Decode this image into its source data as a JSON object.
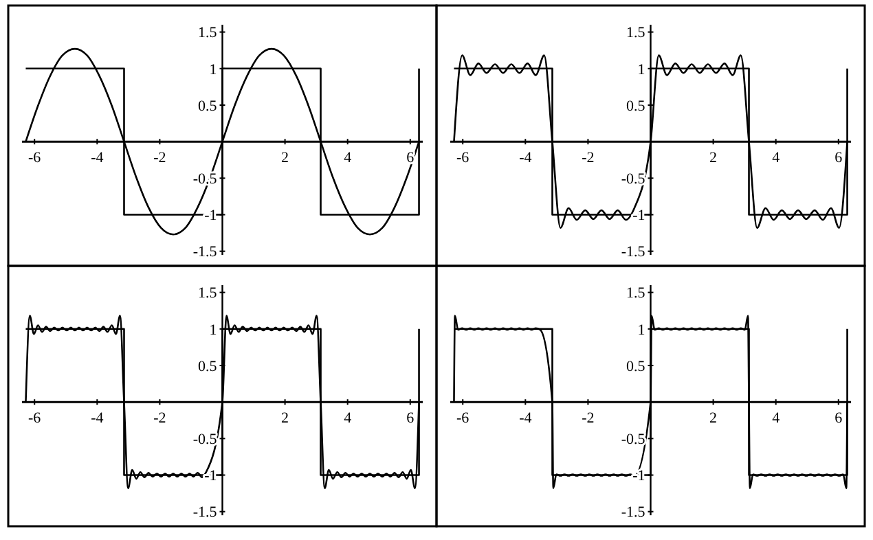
{
  "chart_data": [
    {
      "type": "line",
      "xlim": [
        -6.4,
        6.4
      ],
      "ylim": [
        -1.55,
        1.6
      ],
      "xticks": [
        -6,
        -4,
        -2,
        2,
        4,
        6
      ],
      "yticks": [
        -1.5,
        -1,
        -0.5,
        0.5,
        1,
        1.5
      ],
      "series": [
        {
          "color": "#000000",
          "x": [
            -6.28,
            -3.14,
            -3.14,
            0,
            0,
            3.14,
            3.14,
            6.28,
            6.28
          ],
          "values": [
            1,
            1,
            -1,
            -1,
            1,
            1,
            -1,
            -1,
            1
          ]
        },
        {
          "color": "#000000",
          "x": [
            -6.28,
            -5.89,
            -5.5,
            -5.11,
            -4.71,
            -4.32,
            -3.93,
            -3.53,
            -3.14,
            -2.75,
            -2.36,
            -1.96,
            -1.57,
            -1.18,
            -0.79,
            -0.39,
            0,
            0.39,
            0.79,
            1.18,
            1.57,
            1.96,
            2.36,
            2.75,
            3.14,
            3.53,
            3.93,
            4.32,
            4.71,
            5.11,
            5.5,
            5.89,
            6.28
          ],
          "values": [
            0,
            0.49,
            0.9,
            1.18,
            1.27,
            1.18,
            0.9,
            0.49,
            0,
            -0.49,
            -0.9,
            -1.18,
            -1.27,
            -1.18,
            -0.9,
            -0.49,
            0,
            0.49,
            0.9,
            1.18,
            1.27,
            1.18,
            0.9,
            0.49,
            0,
            -0.49,
            -0.9,
            -1.18,
            -1.27,
            -1.18,
            -0.9,
            -0.49,
            0
          ]
        }
      ]
    },
    {
      "type": "line",
      "xlim": [
        -6.4,
        6.4
      ],
      "ylim": [
        -1.55,
        1.6
      ],
      "xticks": [
        -6,
        -4,
        -2,
        2,
        4,
        6
      ],
      "yticks": [
        -1.5,
        -1,
        -0.5,
        0.5,
        1,
        1.5
      ],
      "series": [
        {
          "color": "#000000",
          "x": [
            -6.28,
            -3.14,
            -3.14,
            0,
            0,
            3.14,
            3.14,
            6.28,
            6.28
          ],
          "values": [
            1,
            1,
            -1,
            -1,
            1,
            1,
            -1,
            -1,
            1
          ]
        },
        {
          "color": "#000000",
          "x": [
            -6.28,
            -6.02,
            -5.76,
            -5.5,
            -5.24,
            -4.97,
            -4.71,
            -4.45,
            -4.19,
            -3.93,
            -3.67,
            -3.4,
            -3.14,
            -2.88,
            -2.62,
            -2.36,
            -2.09,
            -1.83,
            -1.57,
            -1.31,
            -1.05,
            -0.79,
            -0.52,
            0,
            0.26,
            0.52,
            0.79,
            1.05,
            1.31,
            1.57,
            1.83,
            2.09,
            2.36,
            2.62,
            2.88,
            3.14,
            3.4,
            3.67,
            3.93,
            4.19,
            4.45,
            4.71,
            4.97,
            5.24,
            5.5,
            5.76,
            6.02,
            6.28
          ],
          "values": [
            0,
            1.18,
            0.91,
            1.07,
            0.94,
            1.06,
            0.94,
            1.06,
            0.94,
            1.07,
            0.91,
            1.18,
            0,
            -1.18,
            -0.91,
            -1.07,
            -0.94,
            -1.06,
            -0.94,
            -1.06,
            -0.94,
            -1.07,
            -0.91,
            0,
            1.18,
            0.91,
            1.07,
            0.94,
            1.06,
            0.94,
            1.06,
            0.94,
            1.07,
            0.91,
            1.18,
            0,
            -1.18,
            -0.91,
            -1.07,
            -0.94,
            -1.06,
            -0.94,
            -1.06,
            -0.94,
            -1.07,
            -0.91,
            -1.18,
            0
          ]
        }
      ]
    },
    {
      "type": "line",
      "xlim": [
        -6.4,
        6.4
      ],
      "ylim": [
        -1.55,
        1.6
      ],
      "xticks": [
        -6,
        -4,
        -2,
        2,
        4,
        6
      ],
      "yticks": [
        -1.5,
        -1,
        -0.5,
        0.5,
        1,
        1.5
      ],
      "series": [
        {
          "color": "#000000",
          "x": [
            -6.28,
            -3.14,
            -3.14,
            0,
            0,
            3.14,
            3.14,
            6.28,
            6.28
          ],
          "values": [
            1,
            1,
            -1,
            -1,
            1,
            1,
            -1,
            -1,
            1
          ]
        },
        {
          "color": "#000000",
          "x": [
            -6.28,
            -6.15,
            -6.02,
            -5.89,
            -5.76,
            -5.63,
            -5.5,
            -5.37,
            -5.24,
            -5.11,
            -4.97,
            -4.84,
            -4.71,
            -4.58,
            -4.45,
            -4.32,
            -4.19,
            -4.06,
            -3.93,
            -3.8,
            -3.67,
            -3.53,
            -3.4,
            -3.27,
            -3.14,
            -3.01,
            -2.88,
            -2.75,
            -2.62,
            -2.49,
            -2.36,
            -2.23,
            -2.09,
            -1.96,
            -1.83,
            -1.7,
            -1.57,
            -1.44,
            -1.31,
            -1.18,
            -1.05,
            -0.92,
            -0.79,
            -0.65,
            -0.52,
            0,
            0.13,
            0.26,
            0.39,
            0.52,
            0.65,
            0.79,
            0.92,
            1.05,
            1.18,
            1.31,
            1.44,
            1.57,
            1.7,
            1.83,
            1.96,
            2.09,
            2.23,
            2.36,
            2.49,
            2.62,
            2.75,
            2.88,
            3.01,
            3.14,
            3.27,
            3.4,
            3.53,
            3.67,
            3.8,
            3.93,
            4.06,
            4.19,
            4.32,
            4.45,
            4.58,
            4.71,
            4.84,
            4.97,
            5.11,
            5.24,
            5.37,
            5.5,
            5.63,
            5.76,
            5.89,
            6.02,
            6.15,
            6.28
          ],
          "values": [
            0,
            1.18,
            0.93,
            1.05,
            0.96,
            1.03,
            0.97,
            1.02,
            0.98,
            1.02,
            0.98,
            1.02,
            0.98,
            1.02,
            0.98,
            1.02,
            0.98,
            1.02,
            0.97,
            1.03,
            0.96,
            1.05,
            0.93,
            1.18,
            0,
            -1.18,
            -0.93,
            -1.05,
            -0.96,
            -1.03,
            -0.97,
            -1.02,
            -0.98,
            -1.02,
            -0.98,
            -1.02,
            -0.98,
            -1.02,
            -0.98,
            -1.02,
            -0.98,
            -1.02,
            -0.97,
            -1.03,
            -0.96,
            0,
            1.18,
            0.93,
            1.05,
            0.96,
            1.03,
            0.97,
            1.02,
            0.98,
            1.02,
            0.98,
            1.02,
            0.98,
            1.02,
            0.98,
            1.02,
            0.98,
            1.02,
            0.97,
            1.03,
            0.96,
            1.05,
            0.93,
            1.18,
            0,
            -1.18,
            -0.93,
            -1.05,
            -0.96,
            -1.03,
            -0.97,
            -1.02,
            -0.98,
            -1.02,
            -0.98,
            -1.02,
            -0.98,
            -1.02,
            -0.98,
            -1.02,
            -0.98,
            -1.02,
            -0.97,
            -1.03,
            -0.96,
            -1.05,
            -0.93,
            -1.18,
            0
          ]
        }
      ]
    },
    {
      "type": "line",
      "xlim": [
        -6.4,
        6.4
      ],
      "ylim": [
        -1.55,
        1.6
      ],
      "xticks": [
        -6,
        -4,
        -2,
        2,
        4,
        6
      ],
      "yticks": [
        -1.5,
        -1,
        -0.5,
        0.5,
        1,
        1.5
      ],
      "series": [
        {
          "color": "#000000",
          "x": [
            -6.28,
            -3.14,
            -3.14,
            0,
            0,
            3.14,
            3.14,
            6.28,
            6.28
          ],
          "values": [
            1,
            1,
            -1,
            -1,
            1,
            1,
            -1,
            -1,
            1
          ]
        },
        {
          "color": "#000000",
          "x": [
            -6.28,
            -6.25,
            -6.15,
            -6.02,
            -5.89,
            -5.76,
            -5.63,
            -5.5,
            -5.37,
            -5.24,
            -5.11,
            -4.97,
            -4.84,
            -4.71,
            -4.58,
            -4.45,
            -4.32,
            -4.19,
            -4.06,
            -3.93,
            -3.8,
            -3.67,
            -3.53,
            -3.14,
            -3.11,
            -3.01,
            -2.88,
            -2.75,
            -2.62,
            -2.49,
            -2.36,
            -2.23,
            -2.09,
            -1.96,
            -1.83,
            -1.7,
            -1.57,
            -1.44,
            -1.31,
            -1.18,
            -1.05,
            -0.92,
            -0.79,
            -0.65,
            -0.52,
            0,
            0.03,
            0.13,
            0.26,
            0.39,
            0.52,
            0.65,
            0.79,
            0.92,
            1.05,
            1.18,
            1.31,
            1.44,
            1.57,
            1.7,
            1.83,
            1.96,
            2.09,
            2.23,
            2.36,
            2.49,
            2.62,
            2.75,
            2.88,
            3.01,
            3.11,
            3.14,
            3.17,
            3.27,
            3.4,
            3.53,
            3.67,
            3.8,
            3.93,
            4.06,
            4.19,
            4.32,
            4.45,
            4.58,
            4.71,
            4.84,
            4.97,
            5.11,
            5.24,
            5.37,
            5.5,
            5.63,
            5.76,
            5.89,
            6.02,
            6.15,
            6.25,
            6.28
          ],
          "values": [
            0,
            1.18,
            0.99,
            1.01,
            0.99,
            1.01,
            0.99,
            1.01,
            0.99,
            1.01,
            0.99,
            1.01,
            0.99,
            1.01,
            0.99,
            1.01,
            0.99,
            1.01,
            0.99,
            1.01,
            0.99,
            1.01,
            0.99,
            0,
            -1.18,
            -0.99,
            -1.01,
            -0.99,
            -1.01,
            -0.99,
            -1.01,
            -0.99,
            -1.01,
            -0.99,
            -1.01,
            -0.99,
            -1.01,
            -0.99,
            -1.01,
            -0.99,
            -1.01,
            -0.99,
            -1.01,
            -0.99,
            -1.01,
            0,
            1.18,
            0.99,
            1.01,
            0.99,
            1.01,
            0.99,
            1.01,
            0.99,
            1.01,
            0.99,
            1.01,
            0.99,
            1.01,
            0.99,
            1.01,
            0.99,
            1.01,
            0.99,
            1.01,
            0.99,
            1.01,
            0.99,
            1.01,
            0.99,
            1.18,
            0,
            -1.18,
            -0.99,
            -1.01,
            -0.99,
            -1.01,
            -0.99,
            -1.01,
            -0.99,
            -1.01,
            -0.99,
            -1.01,
            -0.99,
            -1.01,
            -0.99,
            -1.01,
            -0.99,
            -1.01,
            -0.99,
            -1.01,
            -0.99,
            -1.01,
            -0.99,
            -1.01,
            -0.99,
            -1.18,
            0
          ]
        }
      ]
    }
  ]
}
